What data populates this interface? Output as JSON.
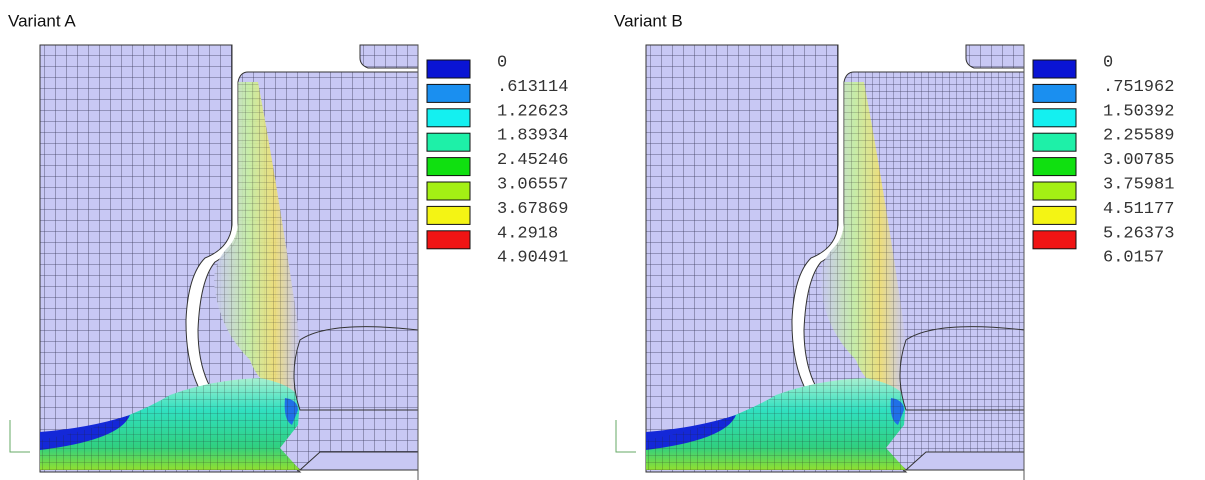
{
  "panels": [
    {
      "title": "Variant A",
      "legend": [
        {
          "label": "0",
          "color": "#0a14d4"
        },
        {
          "label": ".613114",
          "color": "#1a8ff0"
        },
        {
          "label": "1.22623",
          "color": "#14f0f0"
        },
        {
          "label": "1.83934",
          "color": "#1ef0a8"
        },
        {
          "label": "2.45246",
          "color": "#10e010"
        },
        {
          "label": "3.06557",
          "color": "#a4f014"
        },
        {
          "label": "3.67869",
          "color": "#f4f414"
        },
        {
          "label": "4.2918",
          "color": "#f01414"
        },
        {
          "label": "4.90491"
        }
      ]
    },
    {
      "title": "Variant B",
      "legend": [
        {
          "label": "0",
          "color": "#0a14d4"
        },
        {
          "label": ".751962",
          "color": "#1a8ff0"
        },
        {
          "label": "1.50392",
          "color": "#14f0f0"
        },
        {
          "label": "2.25589",
          "color": "#1ef0a8"
        },
        {
          "label": "3.00785",
          "color": "#10e010"
        },
        {
          "label": "3.75981",
          "color": "#a4f014"
        },
        {
          "label": "4.51177",
          "color": "#f4f414"
        },
        {
          "label": "5.26373",
          "color": "#f01414"
        },
        {
          "label": "6.0157"
        }
      ]
    }
  ]
}
